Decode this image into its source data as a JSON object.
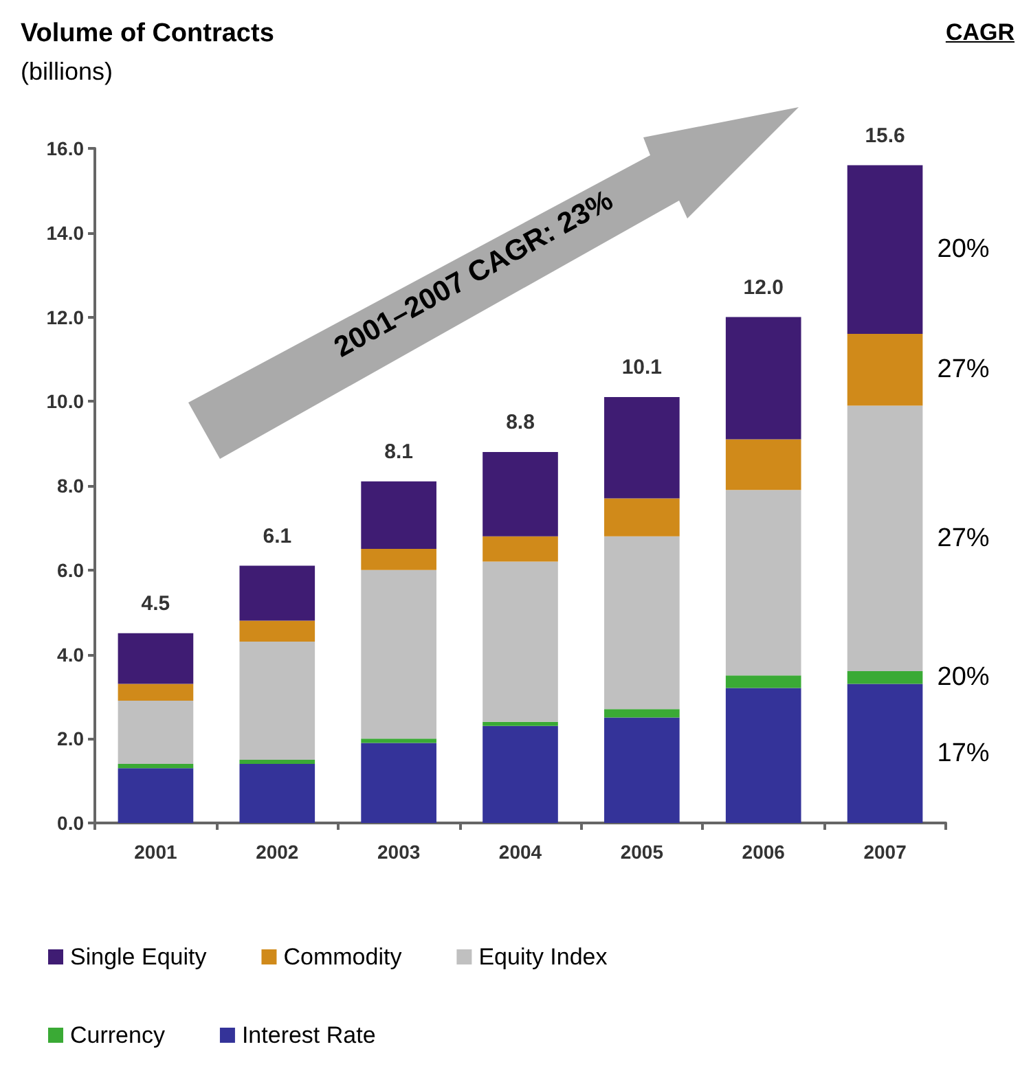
{
  "chart_data": {
    "type": "bar",
    "title": "Volume of Contracts",
    "subtitle": "(billions)",
    "categories": [
      "2001",
      "2002",
      "2003",
      "2004",
      "2005",
      "2006",
      "2007"
    ],
    "stacked": true,
    "series": [
      {
        "name": "Interest Rate",
        "color": "#343399",
        "values": [
          1.3,
          1.4,
          1.9,
          2.3,
          2.5,
          3.2,
          3.3
        ]
      },
      {
        "name": "Currency",
        "color": "#3aaa35",
        "values": [
          0.1,
          0.1,
          0.1,
          0.1,
          0.2,
          0.3,
          0.3
        ]
      },
      {
        "name": "Equity Index",
        "color": "#c0c0c0",
        "values": [
          1.5,
          2.8,
          4.0,
          3.8,
          4.1,
          4.4,
          6.3
        ]
      },
      {
        "name": "Commodity",
        "color": "#d08a1a",
        "values": [
          0.4,
          0.5,
          0.5,
          0.6,
          0.9,
          1.2,
          1.7
        ]
      },
      {
        "name": "Single Equity",
        "color": "#3f1c73",
        "values": [
          1.2,
          1.3,
          1.6,
          2.0,
          2.4,
          2.9,
          4.0
        ]
      }
    ],
    "totals": [
      "4.5",
      "6.1",
      "8.1",
      "8.8",
      "10.1",
      "12.0",
      "15.6"
    ],
    "ylim": [
      0,
      16
    ],
    "yticks": [
      {
        "value": 0,
        "label": "0.0"
      },
      {
        "value": 2,
        "label": "2.0"
      },
      {
        "value": 4,
        "label": "4.0"
      },
      {
        "value": 6,
        "label": "6.0"
      },
      {
        "value": 8,
        "label": "8.0"
      },
      {
        "value": 10,
        "label": "10.0"
      },
      {
        "value": 12,
        "label": "12.0"
      },
      {
        "value": 14,
        "label": "14.0"
      },
      {
        "value": 16,
        "label": "16.0"
      }
    ],
    "grid": false,
    "legend": "bottom",
    "annotations": [
      "CAGR",
      "2001–2007 CAGR: 23%",
      "20%",
      "27%",
      "27%",
      "20%",
      "17%"
    ]
  }
}
